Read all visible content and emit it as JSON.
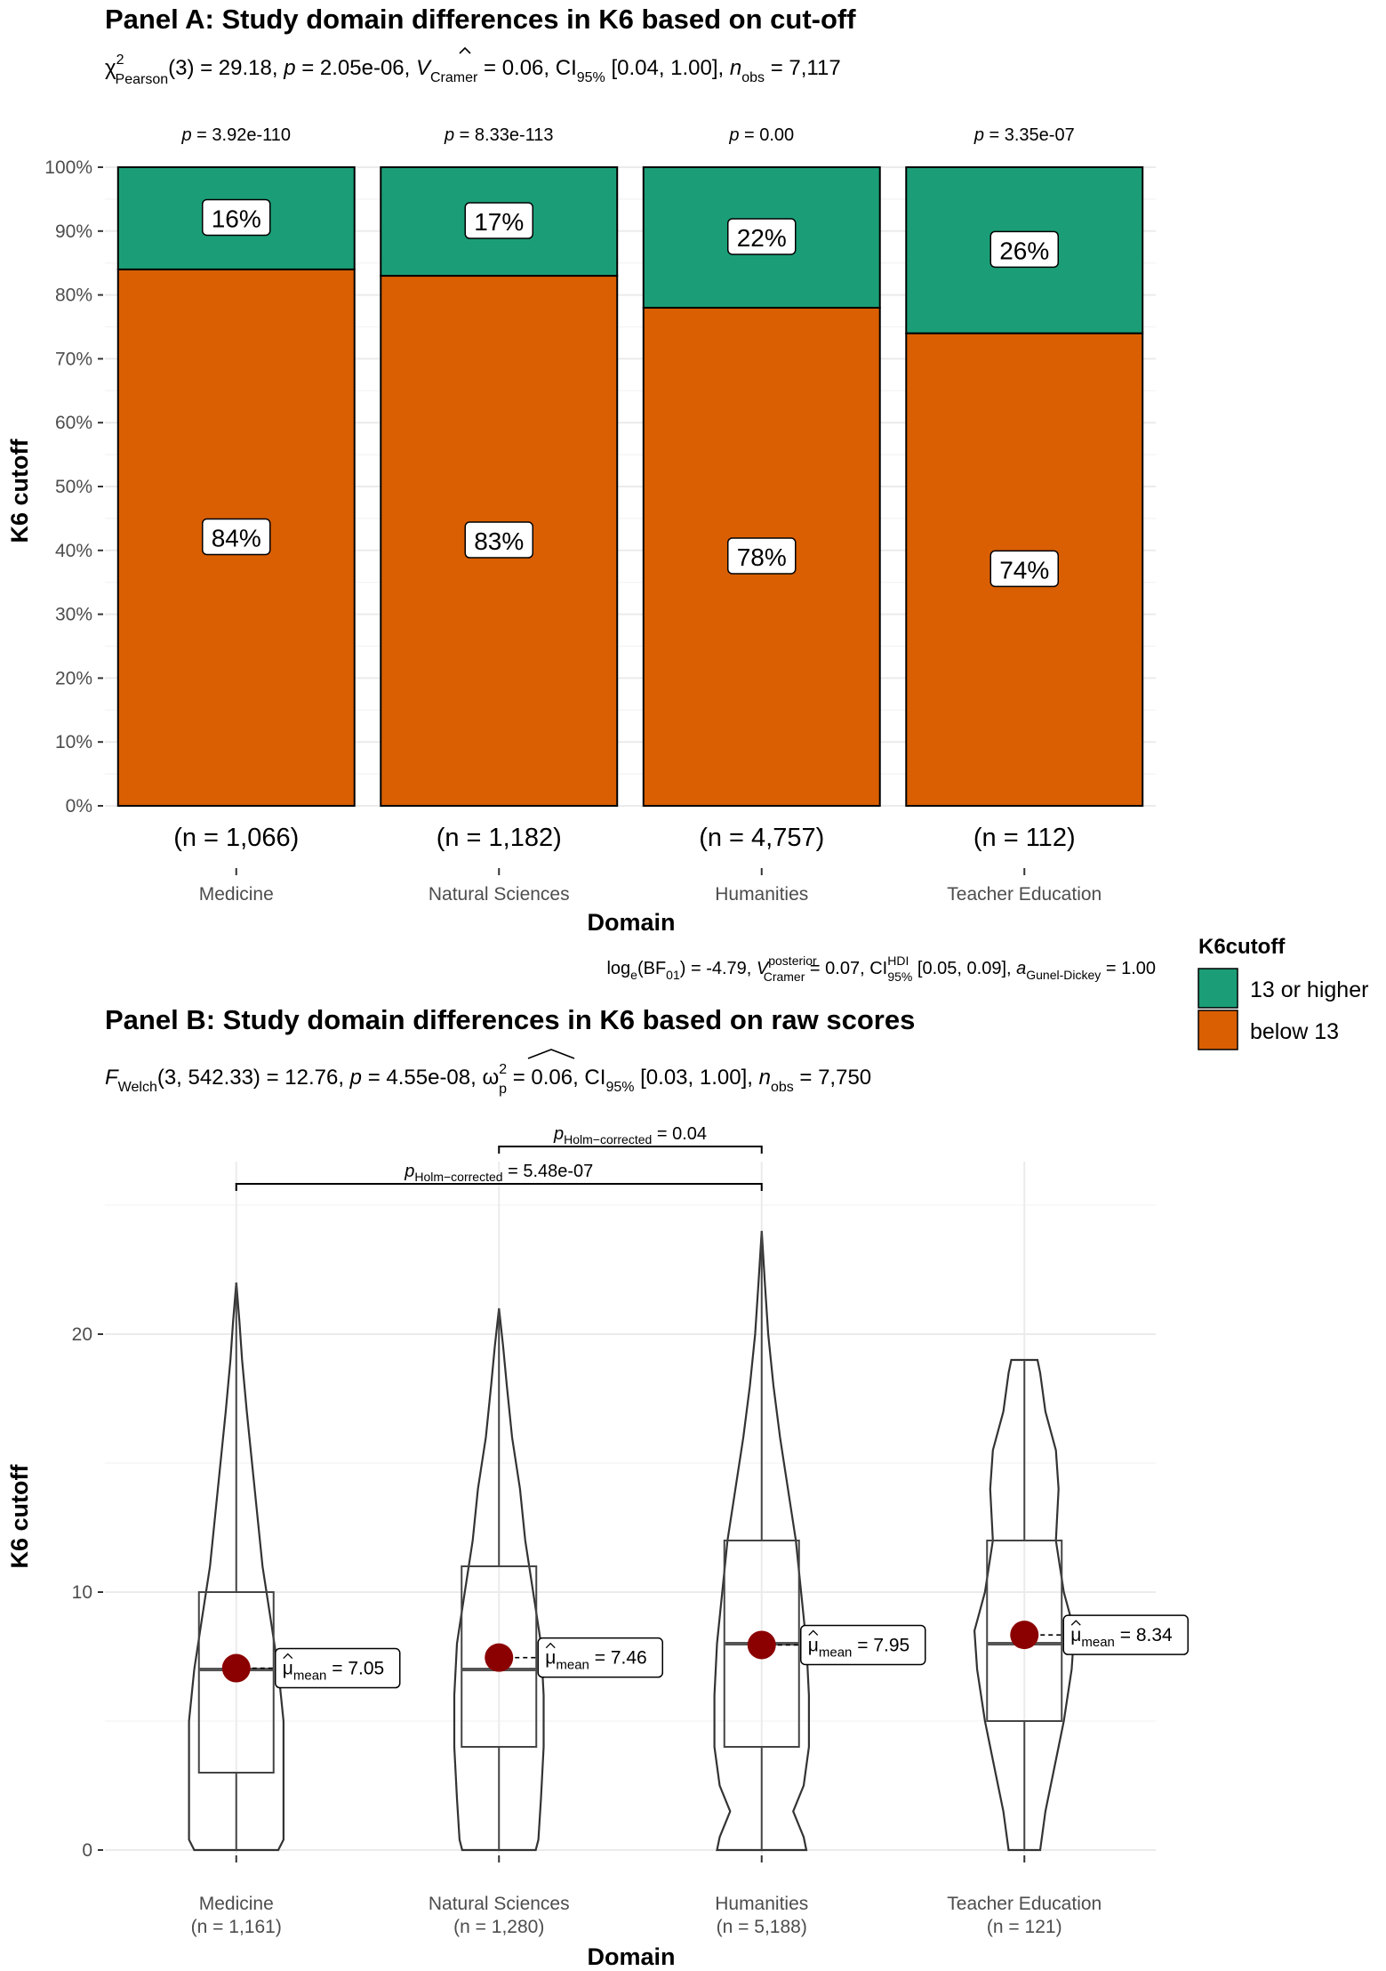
{
  "chart_data": [
    {
      "type": "bar",
      "title": "Panel A: Study domain differences in K6 based on cut-off",
      "subtitle": {
        "prefix": "χ",
        "sup": "2",
        "sub": "Pearson",
        "rest1": "(3) = 29.18, ",
        "p": "p",
        "rest2": " = 2.05e-06, ",
        "v": "V",
        "vsub": "Cramer",
        "rest3": " = 0.06, CI",
        "cisub": "95%",
        "rest4": " [0.04, 1.00], ",
        "n": "n",
        "nsub": "obs",
        "rest5": " = 7,117"
      },
      "caption": {
        "a": "log",
        "asub": "e",
        "b": "(BF",
        "bsub": "01",
        "c": ") = -4.79, ",
        "v": "V",
        "vsup": "posterior",
        "vsub": "Cramer",
        "d": " = 0.07, CI",
        "cisup": "HDI",
        "cisub": "95%",
        "e": " [0.05, 0.09], ",
        "a2": "a",
        "a2sub": "Gunel-Dickey",
        "f": " = 1.00"
      },
      "categories": [
        "Medicine",
        "Natural Sciences",
        "Humanities",
        "Teacher Education"
      ],
      "counts": [
        "(n = 1,066)",
        "(n = 1,182)",
        "(n = 4,757)",
        "(n = 112)"
      ],
      "p_labels": [
        {
          "p": "p",
          "rest": " = 3.92e-110"
        },
        {
          "p": "p",
          "rest": " = 8.33e-113"
        },
        {
          "p": "p",
          "rest": " = 0.00"
        },
        {
          "p": "p",
          "rest": " = 3.35e-07"
        }
      ],
      "series": [
        {
          "name": "below 13",
          "values": [
            84,
            83,
            78,
            74
          ],
          "labels": [
            "84%",
            "83%",
            "78%",
            "74%"
          ],
          "color": "#d95f02"
        },
        {
          "name": "13 or higher",
          "values": [
            16,
            17,
            22,
            26
          ],
          "labels": [
            "16%",
            "17%",
            "22%",
            "26%"
          ],
          "color": "#1b9e77"
        }
      ],
      "ylim": [
        0,
        100
      ],
      "yticks": [
        "0%",
        "10%",
        "20%",
        "30%",
        "40%",
        "50%",
        "60%",
        "70%",
        "80%",
        "90%",
        "100%"
      ],
      "xlabel": "Domain",
      "ylabel": "K6 cutoff",
      "legend": {
        "title": "K6cutoff",
        "position": "right",
        "items": [
          "13 or higher",
          "below 13"
        ]
      },
      "grid": true
    },
    {
      "type": "violin",
      "title": "Panel B: Study domain differences in K6 based on raw scores",
      "subtitle": {
        "f": "F",
        "fsub": "Welch",
        "a": "(3, 542.33) = 12.76, ",
        "p": "p",
        "b": " = 4.55e-08, ",
        "w": "ω",
        "wsup": "2",
        "wsub": "p",
        "c": " = 0.06, CI",
        "cisub": "95%",
        "d": " [0.03, 1.00], ",
        "n": "n",
        "nsub": "obs",
        "e": " = 7,750"
      },
      "categories": [
        "Medicine",
        "Natural Sciences",
        "Humanities",
        "Teacher Education"
      ],
      "counts": [
        "(n = 1,161)",
        "(n = 1,280)",
        "(n = 5,188)",
        "(n = 121)"
      ],
      "box": [
        {
          "q1": 3,
          "median": 7,
          "q3": 10,
          "min": 0,
          "max": 22
        },
        {
          "q1": 4,
          "median": 7,
          "q3": 11,
          "min": 0,
          "max": 21
        },
        {
          "q1": 4,
          "median": 8,
          "q3": 12,
          "min": 0,
          "max": 24
        },
        {
          "q1": 5,
          "median": 8,
          "q3": 12,
          "min": 0,
          "max": 19
        }
      ],
      "means": [
        7.05,
        7.46,
        7.95,
        8.34
      ],
      "mean_labels": [
        {
          "mu": "μ",
          "sub": "mean",
          "rest": " = 7.05"
        },
        {
          "mu": "μ",
          "sub": "mean",
          "rest": " = 7.46"
        },
        {
          "mu": "μ",
          "sub": "mean",
          "rest": " = 7.95"
        },
        {
          "mu": "μ",
          "sub": "mean",
          "rest": " = 8.34"
        }
      ],
      "comparisons": [
        {
          "from": "Natural Sciences",
          "to": "Humanities",
          "p": "p",
          "sub": "Holm−corrected",
          "rest": " = 0.04"
        },
        {
          "from": "Medicine",
          "to": "Humanities",
          "p": "p",
          "sub": "Holm−corrected",
          "rest": " = 5.48e-07"
        }
      ],
      "ylim": [
        0,
        26
      ],
      "yticks": [
        "0",
        "10",
        "20"
      ],
      "xlabel": "Domain",
      "ylabel": "K6 cutoff",
      "mean_color": "#8b0000",
      "grid": true
    }
  ]
}
